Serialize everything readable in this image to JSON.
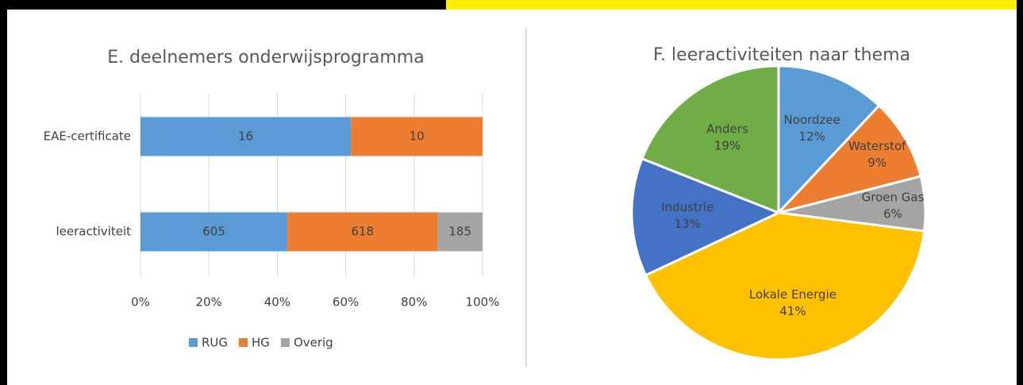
{
  "chart_data": [
    {
      "type": "stacked_bar_horizontal_100",
      "title": "E. deelnemers onderwijsprogramma",
      "categories": [
        "EAE-certificate",
        "leeractiviteit"
      ],
      "series": [
        {
          "name": "RUG",
          "color": "#5b9bd5",
          "values": [
            16,
            605
          ]
        },
        {
          "name": "HG",
          "color": "#ed7d31",
          "values": [
            10,
            618
          ]
        },
        {
          "name": "Overig",
          "color": "#a5a5a5",
          "values": [
            null,
            185
          ]
        }
      ],
      "xlim": [
        0,
        100
      ],
      "xticks": [
        {
          "value": 0,
          "label": "0%"
        },
        {
          "value": 20,
          "label": "20%"
        },
        {
          "value": 40,
          "label": "40%"
        },
        {
          "value": 60,
          "label": "60%"
        },
        {
          "value": 80,
          "label": "80%"
        },
        {
          "value": 100,
          "label": "100%"
        }
      ],
      "grid": true,
      "legend": "bottom"
    },
    {
      "type": "pie",
      "title": "F. leeractiviteiten naar thema",
      "categories": [
        "Noordzee",
        "Waterstof",
        "Groen Gas",
        "Lokale Energie",
        "Industrie",
        "Anders"
      ],
      "values": [
        12,
        9,
        6,
        41,
        13,
        19
      ],
      "value_labels": [
        "12%",
        "9%",
        "6%",
        "41%",
        "13%",
        "19%"
      ],
      "colors": [
        "#5b9bd5",
        "#ed7d31",
        "#a5a5a5",
        "#ffc000",
        "#4472c4",
        "#70ad47"
      ]
    }
  ]
}
